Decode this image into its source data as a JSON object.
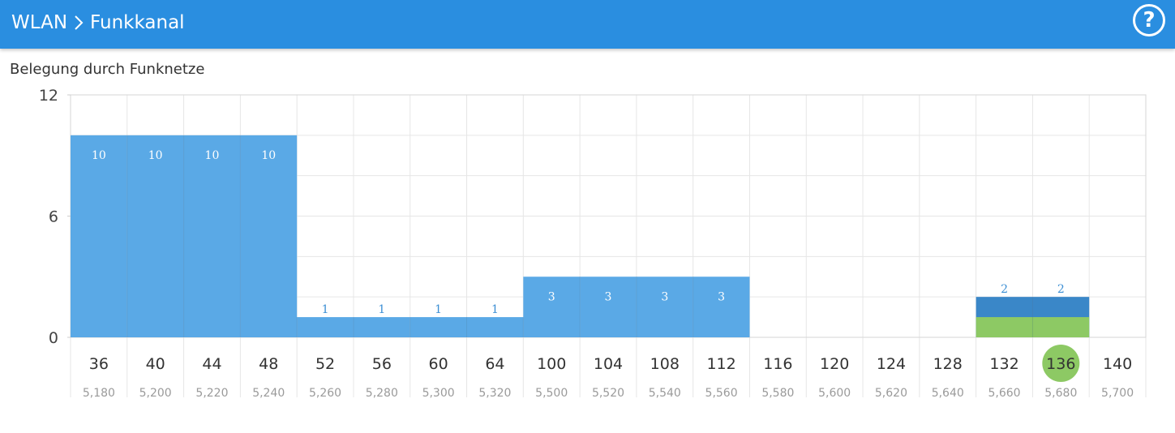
{
  "header": {
    "section": "WLAN",
    "page": "Funkkanal",
    "help_label": "?"
  },
  "chart_data": {
    "type": "bar",
    "title": "Belegung durch Funknetze",
    "ylim": [
      0,
      12
    ],
    "yticks": [
      "0",
      "6",
      "12"
    ],
    "categories": [
      "36",
      "40",
      "44",
      "48",
      "52",
      "56",
      "60",
      "64",
      "100",
      "104",
      "108",
      "112",
      "116",
      "120",
      "124",
      "128",
      "132",
      "136",
      "140"
    ],
    "frequencies": [
      "5,180",
      "5,200",
      "5,220",
      "5,240",
      "5,260",
      "5,280",
      "5,300",
      "5,320",
      "5,500",
      "5,520",
      "5,540",
      "5,560",
      "5,580",
      "5,600",
      "5,620",
      "5,640",
      "5,660",
      "5,680",
      "5,700"
    ],
    "values": [
      10,
      10,
      10,
      10,
      1,
      1,
      1,
      1,
      3,
      3,
      3,
      3,
      0,
      0,
      0,
      0,
      2,
      2,
      0
    ],
    "own_network": [
      0,
      0,
      0,
      0,
      0,
      0,
      0,
      0,
      0,
      0,
      0,
      0,
      0,
      0,
      0,
      0,
      1,
      1,
      0
    ],
    "selected_channel": "136",
    "grid": true,
    "colors": {
      "bar": "#5aa9e6",
      "bar_dark": "#3a87c8",
      "own": "#8dc964",
      "selected": "#8dc964",
      "label_inside": "#ffffff",
      "label_above": "#3d8fd4"
    }
  }
}
